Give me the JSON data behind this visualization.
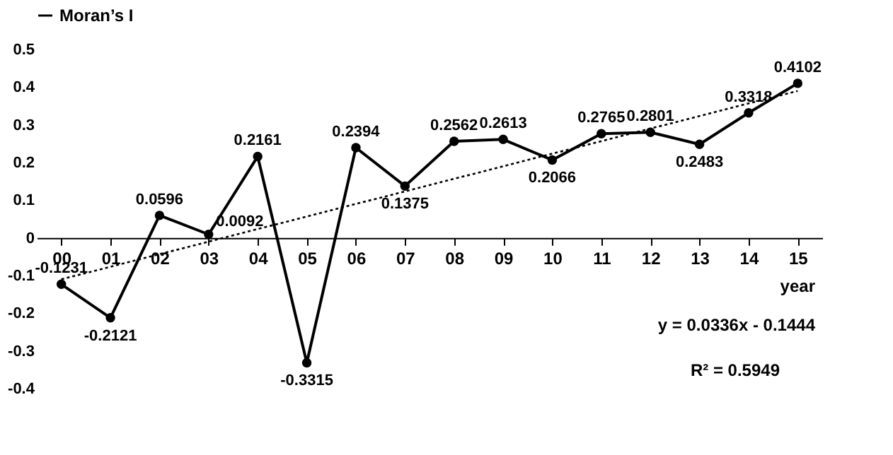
{
  "chart_data": {
    "type": "line",
    "categories": [
      "00",
      "01",
      "02",
      "03",
      "04",
      "05",
      "06",
      "07",
      "08",
      "09",
      "10",
      "11",
      "12",
      "13",
      "14",
      "15"
    ],
    "xlabel": "year",
    "series": [
      {
        "name": "Moran’s I",
        "color": "#000000",
        "marker": "circle",
        "line_style": "solid",
        "values": [
          -0.1231,
          -0.2121,
          0.0596,
          0.0092,
          0.2161,
          -0.3315,
          0.2394,
          0.1375,
          0.2562,
          0.2613,
          0.2066,
          0.2765,
          0.2801,
          0.2483,
          0.3318,
          0.4102
        ],
        "value_labels": [
          "-0.1231",
          "-0.2121",
          "0.0596",
          "0.0092",
          "0.2161",
          "-0.3315",
          "0.2394",
          "0.1375",
          "0.2562",
          "0.2613",
          "0.2066",
          "0.2765",
          "0.2801",
          "0.2483",
          "0.3318",
          "0.4102"
        ]
      },
      {
        "type": "line",
        "color": "#000000",
        "marker": "none",
        "line_style": "dotted",
        "x": [
          "00",
          "15"
        ],
        "values": [
          -0.11,
          0.39
        ]
      }
    ],
    "ylim": [
      -0.4,
      0.5
    ],
    "yticks": [
      -0.4,
      -0.3,
      -0.2,
      -0.1,
      0,
      0.1,
      0.2,
      0.3,
      0.4,
      0.5
    ],
    "grid": false,
    "legend": "top",
    "annotations": [
      "y = 0.0336x - 0.1444",
      "R² = 0.5949"
    ]
  }
}
